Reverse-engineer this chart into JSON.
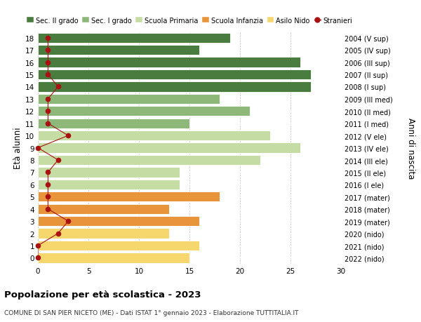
{
  "ages": [
    0,
    1,
    2,
    3,
    4,
    5,
    6,
    7,
    8,
    9,
    10,
    11,
    12,
    13,
    14,
    15,
    16,
    17,
    18
  ],
  "values": [
    15,
    16,
    13,
    16,
    13,
    18,
    14,
    14,
    22,
    26,
    23,
    15,
    21,
    18,
    27,
    27,
    26,
    16,
    19
  ],
  "stranieri": [
    0,
    0,
    2,
    3,
    1,
    1,
    1,
    1,
    2,
    0,
    3,
    1,
    1,
    1,
    2,
    1,
    1,
    1,
    1
  ],
  "right_labels": [
    "2022 (nido)",
    "2021 (nido)",
    "2020 (nido)",
    "2019 (mater)",
    "2018 (mater)",
    "2017 (mater)",
    "2016 (I ele)",
    "2015 (II ele)",
    "2014 (III ele)",
    "2013 (IV ele)",
    "2012 (V ele)",
    "2011 (I med)",
    "2010 (II med)",
    "2009 (III med)",
    "2008 (I sup)",
    "2007 (II sup)",
    "2006 (III sup)",
    "2005 (IV sup)",
    "2004 (V sup)"
  ],
  "bar_colors": [
    "#f5d76e",
    "#f5d76e",
    "#f5d76e",
    "#e8943a",
    "#e8943a",
    "#e8943a",
    "#c5dda4",
    "#c5dda4",
    "#c5dda4",
    "#c5dda4",
    "#c5dda4",
    "#8db87a",
    "#8db87a",
    "#8db87a",
    "#4a7c3f",
    "#4a7c3f",
    "#4a7c3f",
    "#4a7c3f",
    "#4a7c3f"
  ],
  "legend_labels": [
    "Sec. II grado",
    "Sec. I grado",
    "Scuola Primaria",
    "Scuola Infanzia",
    "Asilo Nido",
    "Stranieri"
  ],
  "legend_colors": [
    "#4a7c3f",
    "#8db87a",
    "#c5dda4",
    "#e8943a",
    "#f5d76e",
    "#cc2222"
  ],
  "ylabel_left": "Età alunni",
  "ylabel_right": "Anni di nascita",
  "title": "Popolazione per età scolastica - 2023",
  "subtitle": "COMUNE DI SAN PIER NICETO (ME) - Dati ISTAT 1° gennaio 2023 - Elaborazione TUTTITALIA.IT",
  "xlim": [
    0,
    30
  ],
  "bar_height": 0.82,
  "stranieri_color": "#aa1111",
  "background_color": "#ffffff",
  "grid_color": "#bbbbbb"
}
